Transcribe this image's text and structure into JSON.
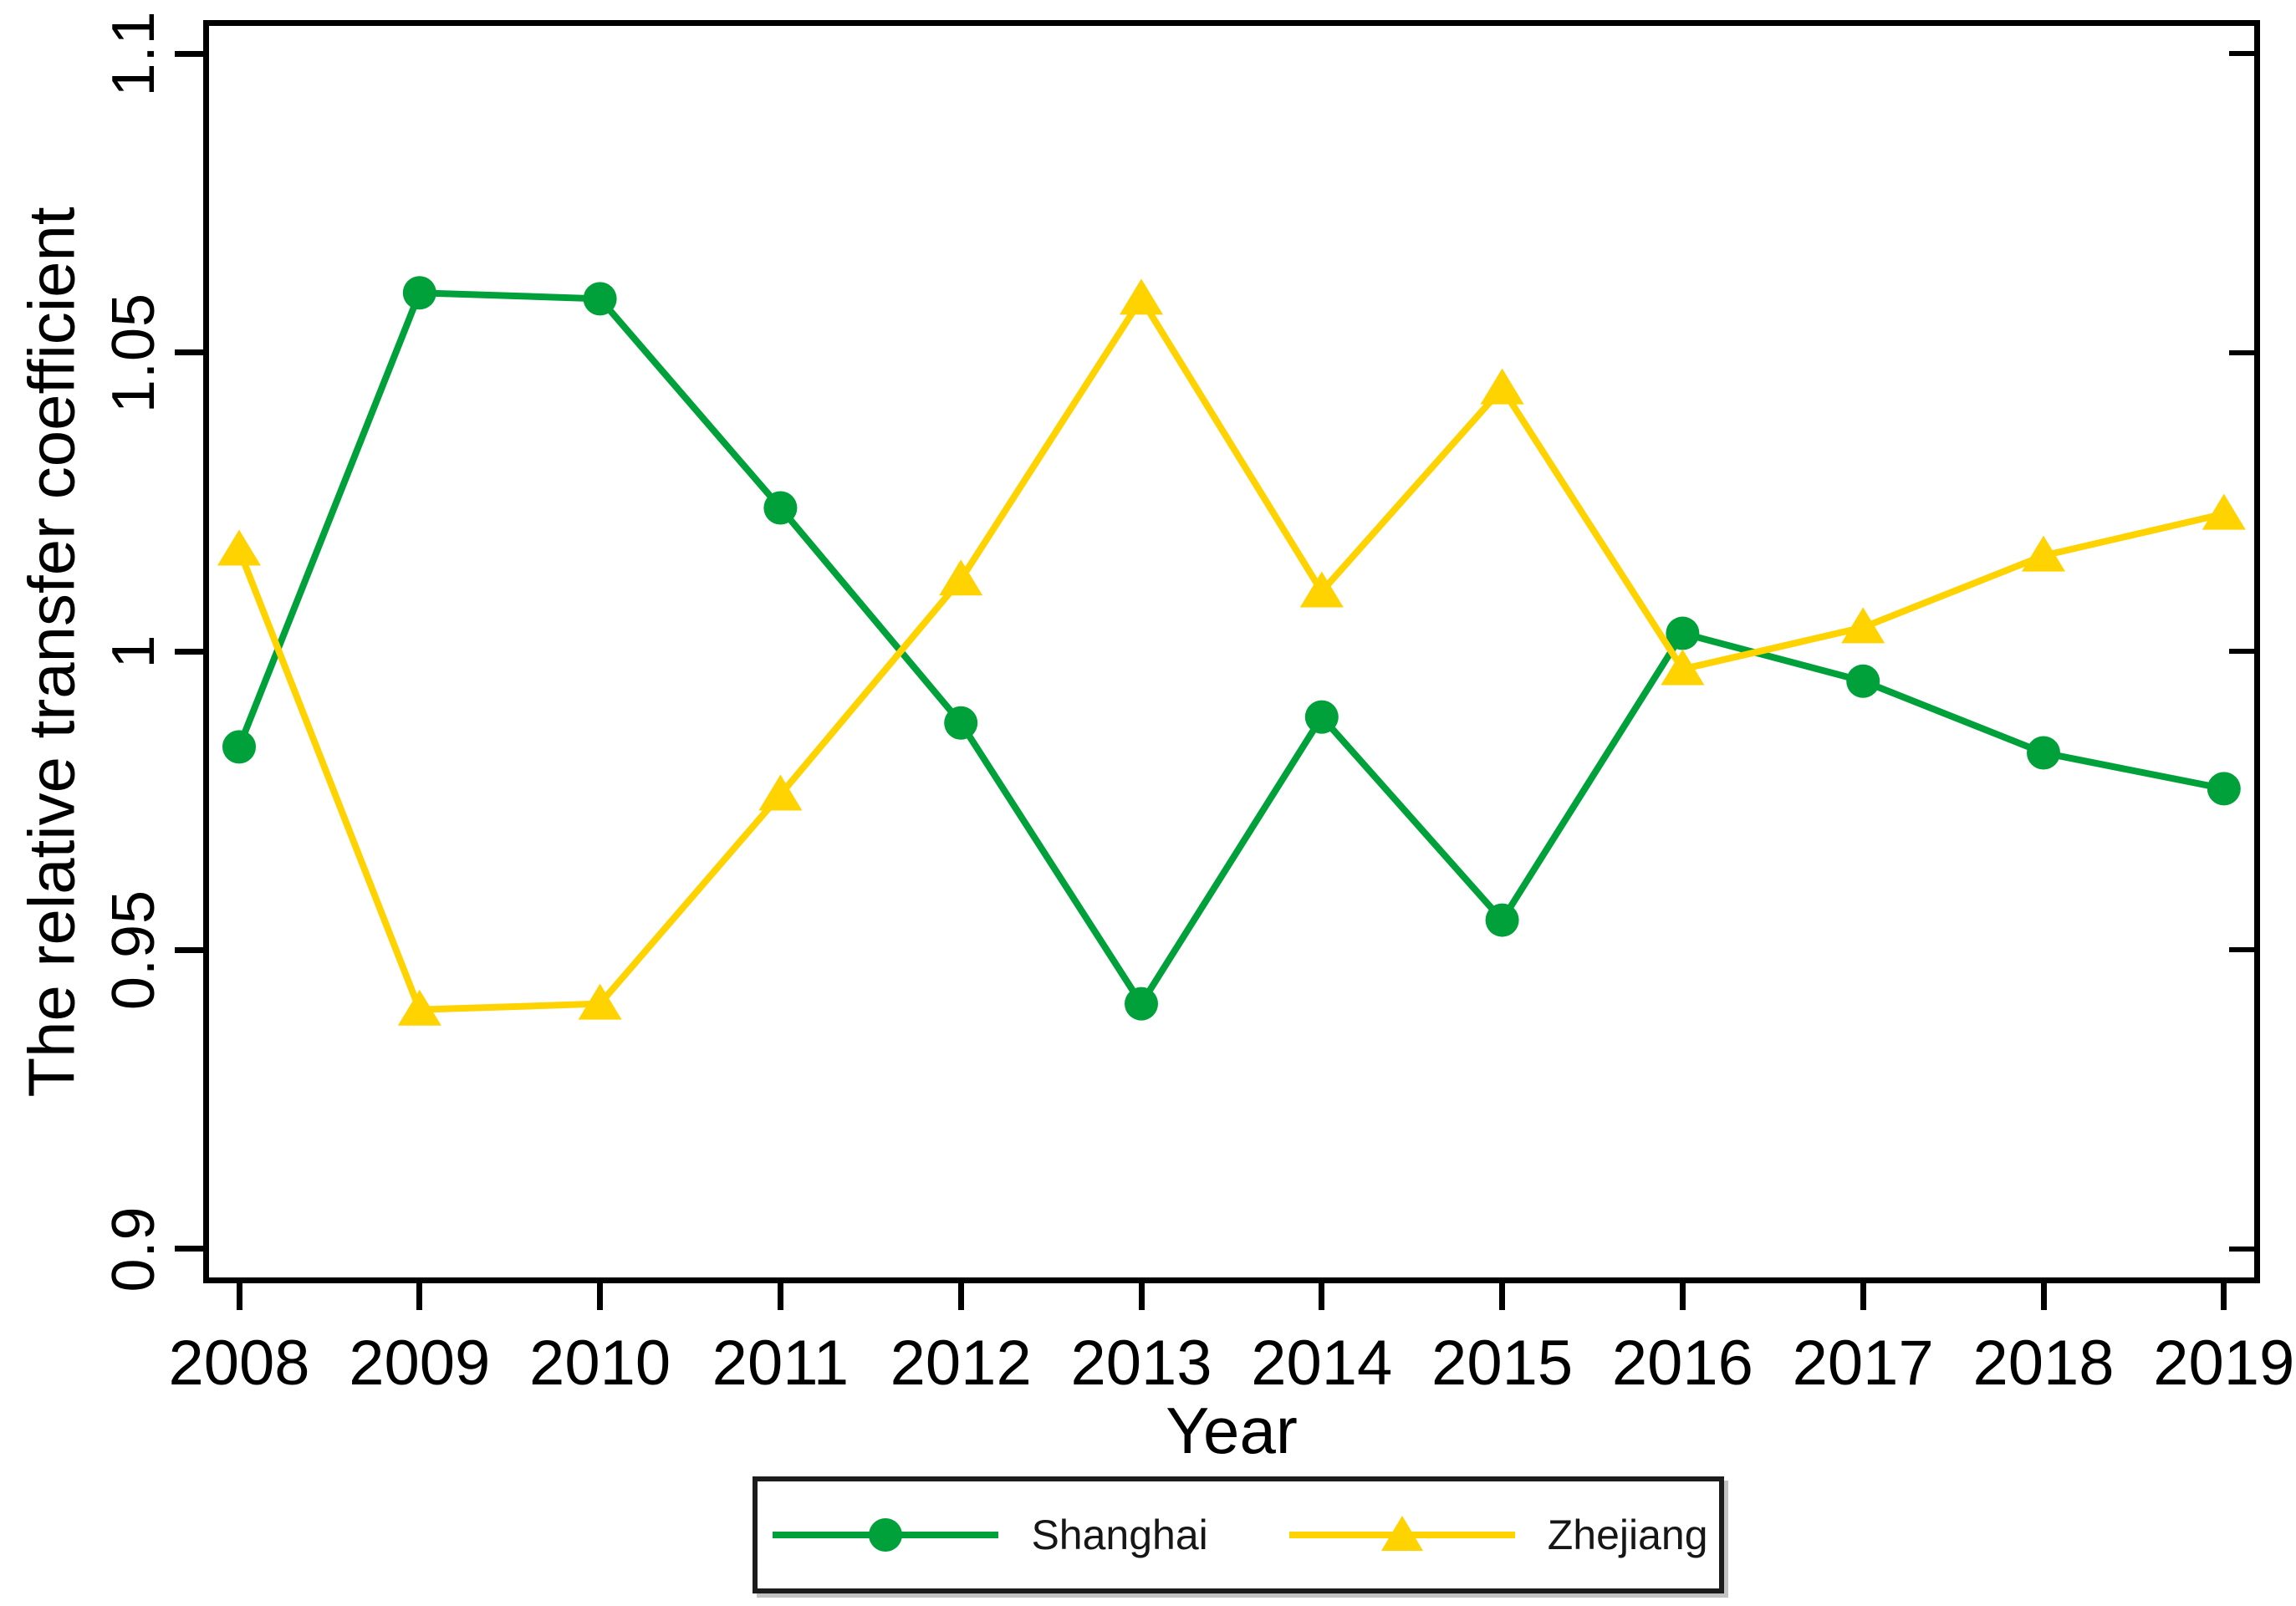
{
  "figure": {
    "background": "#ffffff",
    "frame_color": "#000000",
    "text_color": "#000000"
  },
  "chart_data": {
    "type": "line",
    "title": "",
    "xlabel": "Year",
    "ylabel": "The relative transfer coefficient",
    "x_labels": [
      "2008",
      "2009",
      "2010",
      "2011",
      "2012",
      "2013",
      "2014",
      "2015",
      "2016",
      "2017",
      "2018",
      "2019"
    ],
    "y_ticks": [
      {
        "label": "1.1",
        "value": 1.1
      },
      {
        "label": "1.05",
        "value": 1.05
      },
      {
        "label": "1",
        "value": 1.0
      },
      {
        "label": "0.95",
        "value": 0.95
      },
      {
        "label": "0.9",
        "value": 0.9
      }
    ],
    "ylim": [
      0.894,
      1.106
    ],
    "grid": false,
    "legend_position": "bottom-center",
    "series": [
      {
        "name": "Shanghai",
        "color": "#00A13A",
        "marker": "circle",
        "values": [
          0.984,
          1.06,
          1.059,
          1.024,
          0.988,
          0.941,
          0.989,
          0.955,
          1.003,
          0.995,
          0.983,
          0.977
        ]
      },
      {
        "name": "Zhejiang",
        "color": "#FFD300",
        "marker": "triangle",
        "values": [
          1.017,
          0.94,
          0.941,
          0.976,
          1.012,
          1.059,
          1.01,
          1.044,
          0.997,
          1.004,
          1.016,
          1.023
        ]
      }
    ]
  }
}
